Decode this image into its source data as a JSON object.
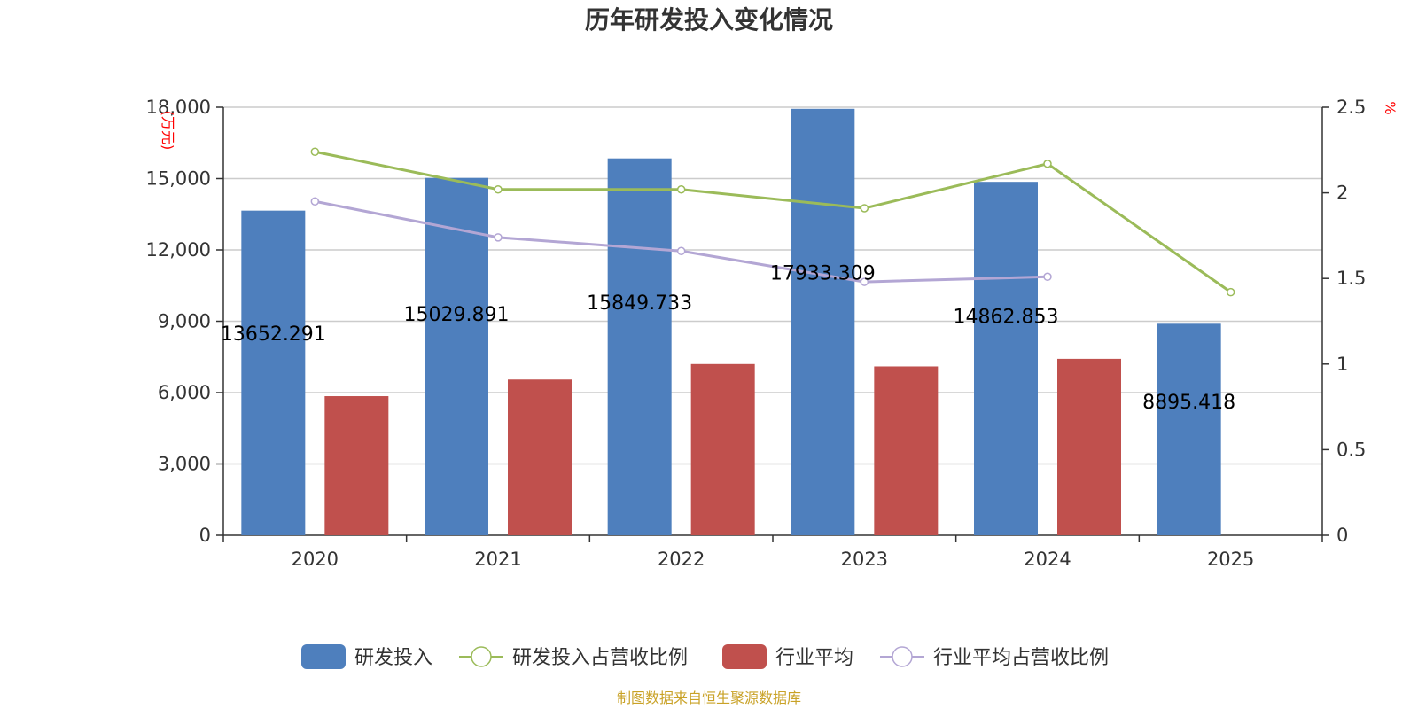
{
  "chart_data": {
    "type": "bar",
    "title": "历年研发投入变化情况",
    "categories": [
      "2020",
      "2021",
      "2022",
      "2023",
      "2024",
      "2025"
    ],
    "y_left": {
      "unit": "(万元)",
      "min": 0,
      "max": 18000,
      "ticks": [
        "0",
        "3,000",
        "6,000",
        "9,000",
        "12,000",
        "15,000",
        "18,000"
      ]
    },
    "y_right": {
      "unit": "%",
      "min": 0,
      "max": 2.5,
      "ticks": [
        "0",
        "0.5",
        "1",
        "1.5",
        "2",
        "2.5"
      ]
    },
    "grid": true,
    "legend_position": "bottom",
    "series": [
      {
        "name": "研发投入",
        "kind": "bar",
        "axis": "left",
        "color": "#4e7fbd",
        "values": [
          13652.291,
          15029.891,
          15849.733,
          17933.309,
          14862.853,
          8895.418
        ],
        "labels": [
          "13652.291",
          "15029.891",
          "15849.733",
          "17933.309",
          "14862.853",
          "8895.418"
        ]
      },
      {
        "name": "研发投入占营收比例",
        "kind": "line",
        "axis": "right",
        "color": "#9bbb59",
        "values": [
          2.24,
          2.02,
          2.02,
          1.91,
          2.17,
          1.42
        ]
      },
      {
        "name": "行业平均",
        "kind": "bar",
        "axis": "left",
        "color": "#c0504d",
        "values": [
          5850,
          6550,
          7200,
          7100,
          7420,
          null
        ]
      },
      {
        "name": "行业平均占营收比例",
        "kind": "line",
        "axis": "right",
        "color": "#b3a6d4",
        "values": [
          1.95,
          1.74,
          1.66,
          1.48,
          1.51,
          null
        ]
      }
    ],
    "source": "制图数据来自恒生聚源数据库"
  }
}
